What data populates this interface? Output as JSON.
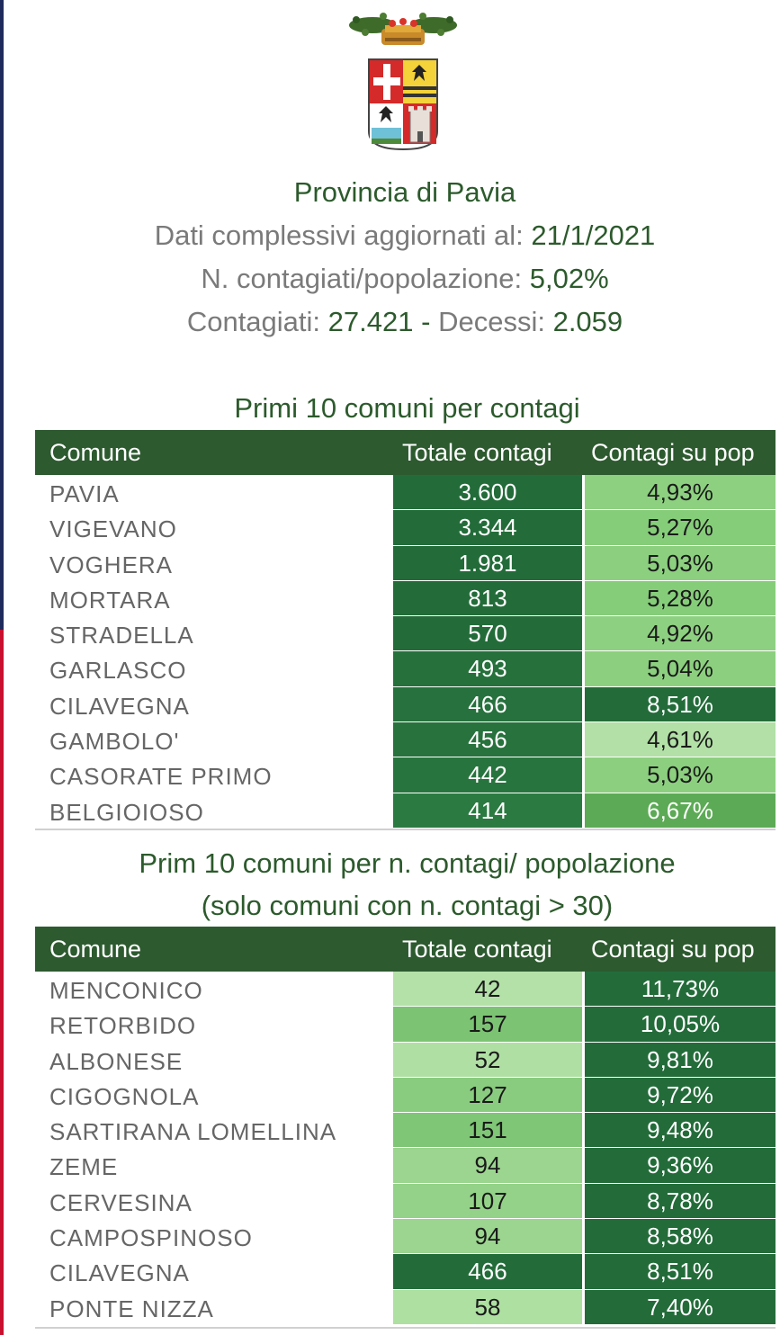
{
  "header": {
    "title": "Provincia di Pavia",
    "line1_label": "Dati complessivi aggiornati al:",
    "line1_value": "21/1/2021",
    "line2_label": "N. contagiati/popolazione:",
    "line2_value": "5,02%",
    "line3_label1": "Contagiati:",
    "line3_value1": "27.421",
    "line3_sep": "-",
    "line3_label2": "Decessi:",
    "line3_value2": "2.059"
  },
  "table1": {
    "title": "Primi 10 comuni per contagi",
    "columns": [
      "Comune",
      "Totale contagi",
      "Contagi su pop"
    ],
    "rows": [
      {
        "comune": "PAVIA",
        "totale": "3.600",
        "pop": "4,93%",
        "tot_color": "#236c3a",
        "pop_color": "#8dd080",
        "tot_text": "#ffffff",
        "pop_text": "#1a1a1a"
      },
      {
        "comune": "VIGEVANO",
        "totale": "3.344",
        "pop": "5,27%",
        "tot_color": "#236c3a",
        "pop_color": "#86cd7a",
        "tot_text": "#ffffff",
        "pop_text": "#1a1a1a"
      },
      {
        "comune": "VOGHERA",
        "totale": "1.981",
        "pop": "5,03%",
        "tot_color": "#236c3a",
        "pop_color": "#8cd07f",
        "tot_text": "#ffffff",
        "pop_text": "#1a1a1a"
      },
      {
        "comune": "MORTARA",
        "totale": "813",
        "pop": "5,28%",
        "tot_color": "#236c3a",
        "pop_color": "#86cd7a",
        "tot_text": "#ffffff",
        "pop_text": "#1a1a1a"
      },
      {
        "comune": "STRADELLA",
        "totale": "570",
        "pop": "4,92%",
        "tot_color": "#236c3a",
        "pop_color": "#8ed081",
        "tot_text": "#ffffff",
        "pop_text": "#1a1a1a"
      },
      {
        "comune": "GARLASCO",
        "totale": "493",
        "pop": "5,04%",
        "tot_color": "#26703c",
        "pop_color": "#8cd07f",
        "tot_text": "#ffffff",
        "pop_text": "#1a1a1a"
      },
      {
        "comune": "CILAVEGNA",
        "totale": "466",
        "pop": "8,51%",
        "tot_color": "#26713d",
        "pop_color": "#236c3a",
        "tot_text": "#ffffff",
        "pop_text": "#ffffff"
      },
      {
        "comune": "GAMBOLO'",
        "totale": "456",
        "pop": "4,61%",
        "tot_color": "#27723d",
        "pop_color": "#b2e0a6",
        "tot_text": "#ffffff",
        "pop_text": "#1a1a1a"
      },
      {
        "comune": "CASORATE PRIMO",
        "totale": "442",
        "pop": "5,03%",
        "tot_color": "#28743e",
        "pop_color": "#8cd07f",
        "tot_text": "#ffffff",
        "pop_text": "#1a1a1a"
      },
      {
        "comune": "BELGIOIOSO",
        "totale": "414",
        "pop": "6,67%",
        "tot_color": "#2b7a42",
        "pop_color": "#5caa55",
        "tot_text": "#ffffff",
        "pop_text": "#ffffff"
      }
    ]
  },
  "table2": {
    "title_line1": "Prim 10 comuni per n. contagi/ popolazione",
    "title_line2": "(solo comuni con n. contagi > 30)",
    "columns": [
      "Comune",
      "Totale contagi",
      "Contagi su pop"
    ],
    "rows": [
      {
        "comune": "MENCONICO",
        "totale": "42",
        "pop": "11,73%",
        "tot_color": "#b4e1a8",
        "pop_color": "#236c3a",
        "tot_text": "#1a1a1a",
        "pop_text": "#ffffff"
      },
      {
        "comune": "RETORBIDO",
        "totale": "157",
        "pop": "10,05%",
        "tot_color": "#7cc473",
        "pop_color": "#236c3a",
        "tot_text": "#1a1a1a",
        "pop_text": "#ffffff"
      },
      {
        "comune": "ALBONESE",
        "totale": "52",
        "pop": "9,81%",
        "tot_color": "#b0dfa4",
        "pop_color": "#236c3a",
        "tot_text": "#1a1a1a",
        "pop_text": "#ffffff"
      },
      {
        "comune": "CIGOGNOLA",
        "totale": "127",
        "pop": "9,72%",
        "tot_color": "#8acc7f",
        "pop_color": "#236c3a",
        "tot_text": "#1a1a1a",
        "pop_text": "#ffffff"
      },
      {
        "comune": "SARTIRANA LOMELLINA",
        "totale": "151",
        "pop": "9,48%",
        "tot_color": "#7fc676",
        "pop_color": "#236c3a",
        "tot_text": "#1a1a1a",
        "pop_text": "#ffffff"
      },
      {
        "comune": "ZEME",
        "totale": "94",
        "pop": "9,36%",
        "tot_color": "#9bd58f",
        "pop_color": "#236c3a",
        "tot_text": "#1a1a1a",
        "pop_text": "#ffffff"
      },
      {
        "comune": "CERVESINA",
        "totale": "107",
        "pop": "8,78%",
        "tot_color": "#93d288",
        "pop_color": "#236c3a",
        "tot_text": "#1a1a1a",
        "pop_text": "#ffffff"
      },
      {
        "comune": "CAMPOSPINOSO",
        "totale": "94",
        "pop": "8,58%",
        "tot_color": "#9bd58f",
        "pop_color": "#236c3a",
        "tot_text": "#1a1a1a",
        "pop_text": "#ffffff"
      },
      {
        "comune": "CILAVEGNA",
        "totale": "466",
        "pop": "8,51%",
        "tot_color": "#236c3a",
        "pop_color": "#236c3a",
        "tot_text": "#ffffff",
        "pop_text": "#ffffff"
      },
      {
        "comune": "PONTE NIZZA",
        "totale": "58",
        "pop": "7,40%",
        "tot_color": "#ade0a1",
        "pop_color": "#236c3a",
        "tot_text": "#1a1a1a",
        "pop_text": "#ffffff"
      }
    ]
  }
}
